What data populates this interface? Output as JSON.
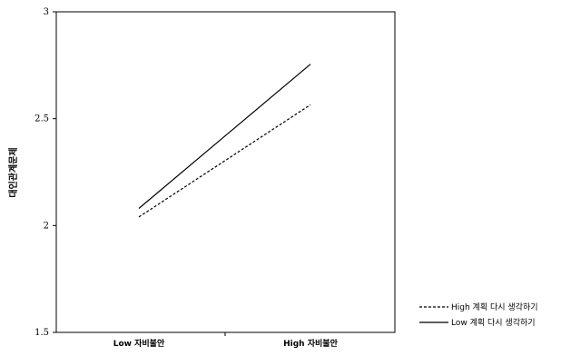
{
  "chart_data": {
    "type": "line",
    "title": "",
    "xlabel": "",
    "ylabel": "대인관계문제",
    "categories": [
      "Low 자비불안",
      "High 자비불안"
    ],
    "series": [
      {
        "name": "High 계획 다시 생각하기",
        "values": [
          2.04,
          2.565
        ],
        "style": "dashed",
        "color": "#000000"
      },
      {
        "name": "Low 계획 다시 생각하기",
        "values": [
          2.08,
          2.755
        ],
        "style": "solid",
        "color": "#000000"
      }
    ],
    "ylim": [
      1.5,
      3
    ],
    "yticks": [
      "1.5",
      "2",
      "2.5",
      "3"
    ],
    "grid": false,
    "legend_position": "bottom-right"
  }
}
